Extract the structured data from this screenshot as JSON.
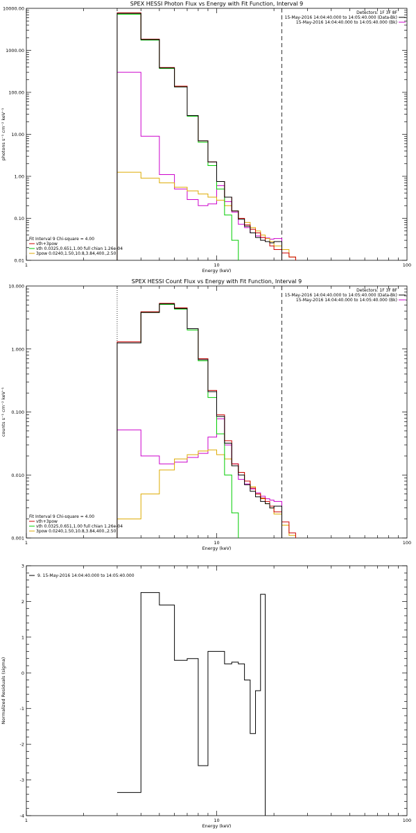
{
  "colors": {
    "data": "#000000",
    "total": "#cc0000",
    "thermal": "#00cc00",
    "nonthermal": "#ddaa00",
    "background": "#cc00cc"
  },
  "chart_data": [
    {
      "type": "line",
      "step": true,
      "title": "SPEX HESSI Photon Flux vs Energy with Fit Function, Interval 9",
      "xlabel": "Energy (keV)",
      "ylabel": "photons s⁻¹ cm⁻² keV⁻¹",
      "xscale": "log",
      "yscale": "log",
      "xlim": [
        1,
        100
      ],
      "ylim": [
        0.01,
        10000
      ],
      "xticks": [
        {
          "v": 1,
          "label": "1"
        },
        {
          "v": 10,
          "label": "10"
        },
        {
          "v": 100,
          "label": "100"
        }
      ],
      "yticks": [
        {
          "v": 0.01,
          "label": "0.01"
        },
        {
          "v": 0.1,
          "label": "0.10"
        },
        {
          "v": 1,
          "label": "1.00"
        },
        {
          "v": 10,
          "label": "10.00"
        },
        {
          "v": 100,
          "label": "100.00"
        },
        {
          "v": 1000,
          "label": "1000.00"
        },
        {
          "v": 10000,
          "label": "10000.00"
        }
      ],
      "vlines": [
        {
          "x": 3.0,
          "style": "dotted"
        },
        {
          "x": 22.0,
          "style": "dashed"
        }
      ],
      "info": [
        "Detectors: 1F 3F 8F",
        "15-May-2016 14:04:40.000 to 14:05:40.000 (Data-Bk)",
        "15-May-2016 14:04:40.000 to 14:05:40.000 (Bk)"
      ],
      "info_series": [
        "data",
        "background"
      ],
      "legend": [
        "Fit Interval 9   Chi-square = 4.00",
        "vth+3pow",
        "vth 0.0325,0.651,1.00  full chian 1.26e-04",
        "3pow 0.0240,1.50,10.8,3.84,400.,2.50"
      ],
      "legend_series": [
        null,
        "total",
        "thermal",
        "nonthermal"
      ],
      "edges": [
        3.0,
        4.0,
        5.0,
        6.0,
        7.0,
        8.0,
        9.0,
        10.0,
        11.0,
        12.0,
        13.0,
        14.0,
        15.0,
        16.0,
        17.0,
        18.0,
        19.0,
        20.0,
        22.0,
        24.0,
        26.0
      ],
      "series": [
        {
          "key": "data",
          "values": [
            7600,
            1800,
            380,
            135,
            28,
            7,
            2.2,
            0.75,
            0.32,
            0.15,
            0.095,
            0.065,
            0.045,
            0.035,
            0.03,
            0.028,
            0.026,
            0.028
          ]
        },
        {
          "key": "total",
          "values": [
            7800,
            1850,
            390,
            140,
            28,
            7,
            2.2,
            0.75,
            0.32,
            0.15,
            0.1,
            0.07,
            0.055,
            0.045,
            0.035,
            0.028,
            0.022,
            0.018,
            0.015,
            0.012
          ]
        },
        {
          "key": "thermal",
          "values": [
            7200,
            1750,
            370,
            135,
            27,
            6.5,
            1.8,
            0.5,
            0.12,
            0.03,
            0.008
          ]
        },
        {
          "key": "background",
          "values": [
            300,
            9,
            1.1,
            0.5,
            0.28,
            0.2,
            0.22,
            0.6,
            0.25,
            0.14,
            0.072,
            0.06,
            0.045,
            0.038,
            0.035,
            0.034,
            0.032,
            0.033
          ]
        },
        {
          "key": "nonthermal",
          "values": [
            1.25,
            0.9,
            0.7,
            0.55,
            0.45,
            0.38,
            0.32,
            0.27,
            0.2,
            0.15,
            0.1,
            0.08,
            0.06,
            0.05,
            0.04,
            0.033,
            0.028,
            0.022,
            0.018,
            0.012
          ]
        }
      ]
    },
    {
      "type": "line",
      "step": true,
      "title": "SPEX HESSI Count Flux vs Energy with Fit Function, Interval 9",
      "xlabel": "Energy (keV)",
      "ylabel": "counts s⁻¹ cm⁻² keV⁻¹",
      "xscale": "log",
      "yscale": "log",
      "xlim": [
        1,
        100
      ],
      "ylim": [
        0.001,
        10
      ],
      "xticks": [
        {
          "v": 1,
          "label": "1"
        },
        {
          "v": 10,
          "label": "10"
        },
        {
          "v": 100,
          "label": "100"
        }
      ],
      "yticks": [
        {
          "v": 0.001,
          "label": "0.001"
        },
        {
          "v": 0.01,
          "label": "0.010"
        },
        {
          "v": 0.1,
          "label": "0.100"
        },
        {
          "v": 1,
          "label": "1.000"
        },
        {
          "v": 10,
          "label": "10.000"
        }
      ],
      "vlines": [
        {
          "x": 3.0,
          "style": "dotted"
        },
        {
          "x": 22.0,
          "style": "dashed"
        }
      ],
      "info": [
        "Detectors: 1F 3F 8F",
        "15-May-2016 14:04:40.000 to 14:05:40.000 (Data-Bk)",
        "15-May-2016 14:04:40.000 to 14:05:40.000 (Bk)"
      ],
      "info_series": [
        "data",
        "background"
      ],
      "legend": [
        "Fit Interval 9   Chi-square = 4.00",
        "vth+3pow",
        "vth 0.0325,0.651,1.00  full chian 1.26e-04",
        "3pow 0.0240,1.50,10.8,3.84,400.,2.50"
      ],
      "legend_series": [
        null,
        "total",
        "thermal",
        "nonthermal"
      ],
      "edges": [
        3.0,
        4.0,
        5.0,
        6.0,
        7.0,
        8.0,
        9.0,
        10.0,
        11.0,
        12.0,
        13.0,
        14.0,
        15.0,
        16.0,
        17.0,
        18.0,
        19.0,
        20.0,
        22.0,
        24.0,
        26.0
      ],
      "series": [
        {
          "key": "data",
          "values": [
            1.25,
            3.8,
            5.2,
            4.4,
            2.1,
            0.68,
            0.21,
            0.085,
            0.032,
            0.014,
            0.01,
            0.007,
            0.0055,
            0.0045,
            0.0038,
            0.0035,
            0.003,
            0.0032
          ]
        },
        {
          "key": "total",
          "values": [
            1.3,
            3.9,
            5.3,
            4.5,
            2.1,
            0.7,
            0.22,
            0.09,
            0.035,
            0.015,
            0.011,
            0.008,
            0.0062,
            0.005,
            0.0043,
            0.0038,
            0.0032,
            0.0026,
            0.0018,
            0.0012
          ]
        },
        {
          "key": "thermal",
          "values": [
            1.25,
            3.8,
            5.1,
            4.3,
            2.0,
            0.65,
            0.17,
            0.045,
            0.01,
            0.0025,
            0.0008
          ]
        },
        {
          "key": "background",
          "values": [
            0.052,
            0.02,
            0.015,
            0.016,
            0.019,
            0.022,
            0.04,
            0.078,
            0.03,
            0.015,
            0.0085,
            0.0072,
            0.006,
            0.0052,
            0.0046,
            0.0042,
            0.004,
            0.0038
          ]
        },
        {
          "key": "nonthermal",
          "values": [
            0.002,
            0.005,
            0.012,
            0.018,
            0.021,
            0.024,
            0.025,
            0.021,
            0.018,
            0.014,
            0.011,
            0.008,
            0.0065,
            0.005,
            0.0042,
            0.0035,
            0.003,
            0.0024,
            0.0016,
            0.0011
          ]
        }
      ]
    },
    {
      "type": "line",
      "step": true,
      "title": "",
      "xlabel": "Energy (keV)",
      "ylabel": "Normalized Residuals (sigma)",
      "xscale": "log",
      "yscale": "linear",
      "xlim": [
        1,
        100
      ],
      "ylim": [
        -4,
        3
      ],
      "xticks": [
        {
          "v": 1,
          "label": "1"
        },
        {
          "v": 10,
          "label": "10"
        },
        {
          "v": 100,
          "label": "100"
        }
      ],
      "yticks": [
        {
          "v": -4,
          "label": "-4"
        },
        {
          "v": -3,
          "label": "-3"
        },
        {
          "v": -2,
          "label": "-2"
        },
        {
          "v": -1,
          "label": "-1"
        },
        {
          "v": 0,
          "label": "0"
        },
        {
          "v": 1,
          "label": "1"
        },
        {
          "v": 2,
          "label": "2"
        },
        {
          "v": 3,
          "label": "3"
        }
      ],
      "vlines": [],
      "legend": [
        "9. 15-May-2016 14:04:40.000 to 14:05:40.000"
      ],
      "legend_series": [
        "data"
      ],
      "edges": [
        3.0,
        4.0,
        5.0,
        6.0,
        7.0,
        8.0,
        9.0,
        10.0,
        11.0,
        12.0,
        13.0,
        14.0,
        15.0,
        16.0,
        17.0,
        18.0,
        19.0,
        20.0,
        22.0
      ],
      "series": [
        {
          "key": "data",
          "values": [
            -3.35,
            2.25,
            1.9,
            0.35,
            0.4,
            -2.6,
            0.6,
            0.6,
            0.25,
            0.3,
            0.25,
            -0.2,
            -1.7,
            -0.5,
            2.2
          ]
        }
      ]
    }
  ]
}
